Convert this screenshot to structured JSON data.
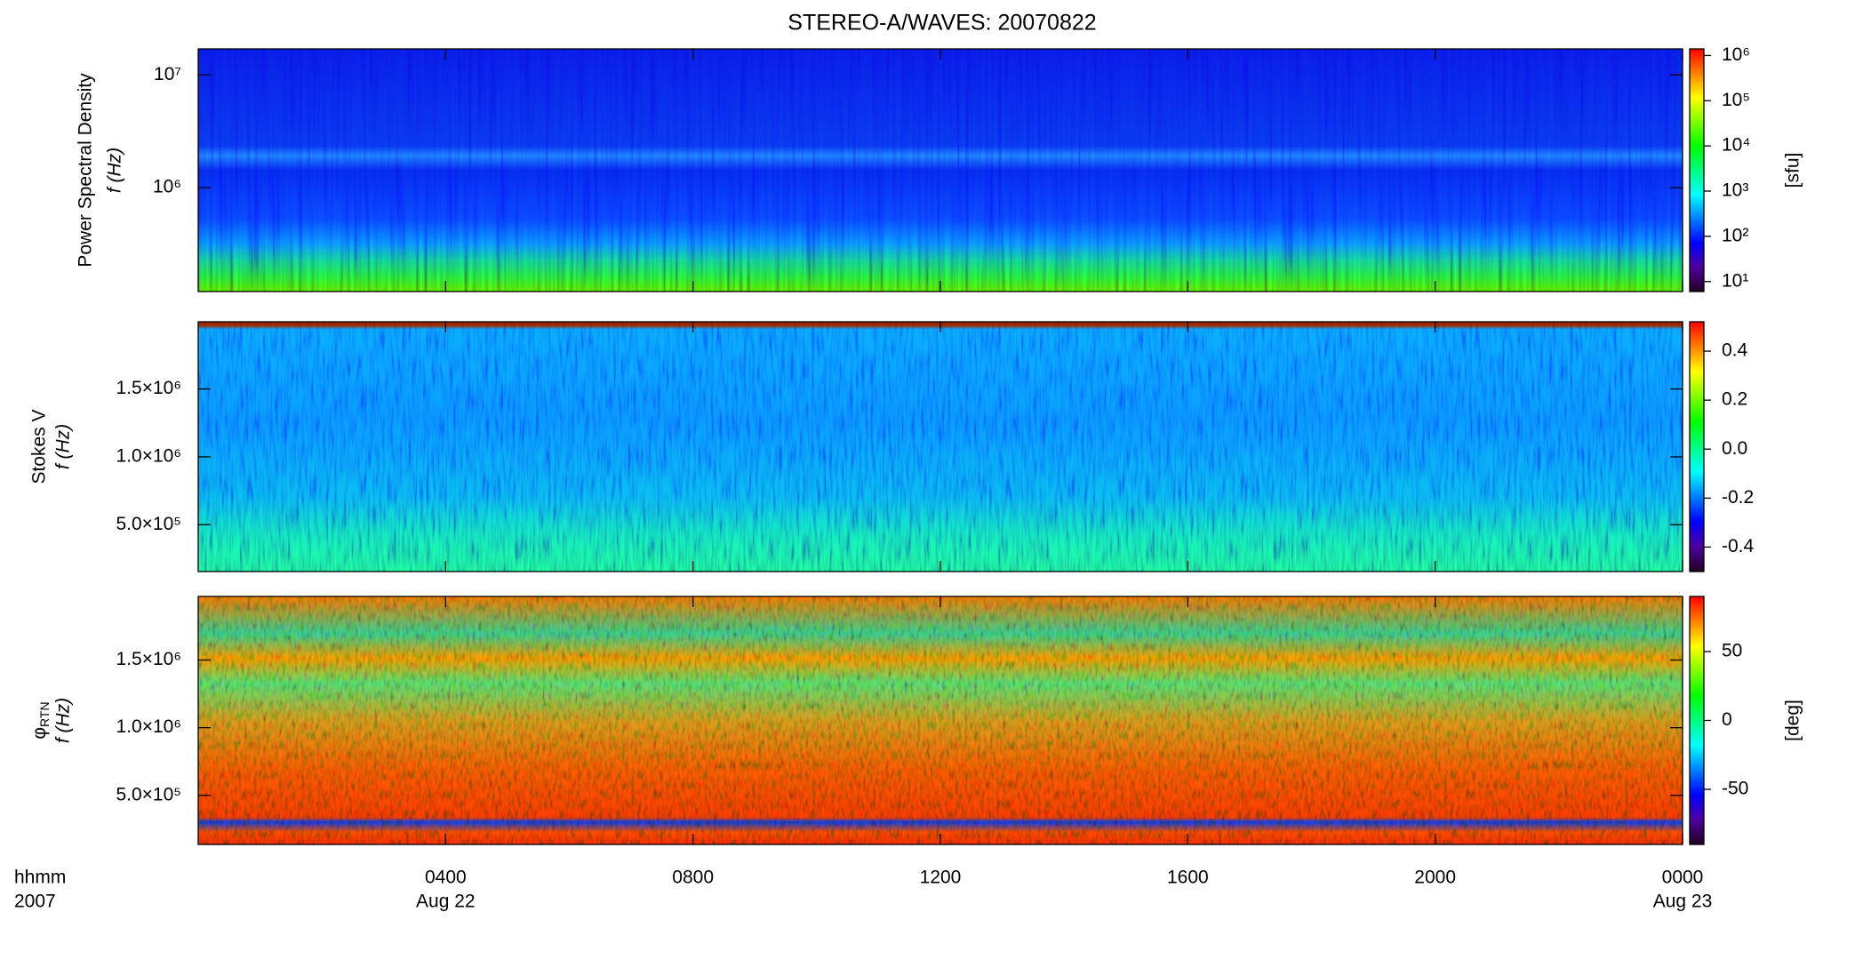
{
  "chart_data": [
    {
      "type": "heatmap",
      "title": "STEREO-A/WAVES: 20070822",
      "ylabel": "Power Spectral Density",
      "ylabel2": "f (Hz)",
      "ylog": true,
      "ylim": [
        120000,
        17000000
      ],
      "yticks": [
        {
          "value": 1000000,
          "label": "10⁶"
        },
        {
          "value": 10000000,
          "label": "10⁷"
        }
      ],
      "xlim": [
        0,
        24
      ],
      "xticks": [
        4,
        8,
        12,
        16,
        20,
        24
      ],
      "clog": true,
      "clim": [
        6,
        1400000
      ],
      "cticks": [
        {
          "value": 10,
          "label": "10¹"
        },
        {
          "value": 100,
          "label": "10²"
        },
        {
          "value": 1000,
          "label": "10³"
        },
        {
          "value": 10000,
          "label": "10⁴"
        },
        {
          "value": 100000,
          "label": "10⁵"
        },
        {
          "value": 1000000,
          "label": "10⁶"
        }
      ],
      "clabel": "[sfu]",
      "colormap": [
        "#200020",
        "#5000a0",
        "#0000ff",
        "#0080ff",
        "#00ffff",
        "#00ff80",
        "#00ff00",
        "#80ff00",
        "#ffff00",
        "#ff8000",
        "#ff0000"
      ]
    },
    {
      "type": "heatmap",
      "ylabel": "Stokes V",
      "ylabel2": "f (Hz)",
      "ylog": false,
      "ylim": [
        155000,
        1995000
      ],
      "yticks": [
        {
          "value": 500000,
          "label": "5.0×10⁵"
        },
        {
          "value": 1000000,
          "label": "1.0×10⁶"
        },
        {
          "value": 1500000,
          "label": "1.5×10⁶"
        }
      ],
      "xlim": [
        0,
        24
      ],
      "xticks": [
        4,
        8,
        12,
        16,
        20,
        24
      ],
      "clog": false,
      "clim": [
        -0.5,
        0.52
      ],
      "cticks": [
        -0.4,
        -0.2,
        {
          "value": 0,
          "label": "0.0"
        },
        0.2,
        0.4
      ],
      "colormap": [
        "#200020",
        "#5000a0",
        "#0000ff",
        "#0080ff",
        "#00ffff",
        "#00ff80",
        "#00ff00",
        "#80ff00",
        "#ffff00",
        "#ff8000",
        "#ff0000"
      ]
    },
    {
      "type": "heatmap",
      "ylabel": "φ",
      "ylabel_sub": "RTN",
      "ylabel2": "f (Hz)",
      "ylog": false,
      "ylim": [
        137000,
        1970000
      ],
      "yticks": [
        {
          "value": 500000,
          "label": "5.0×10⁵"
        },
        {
          "value": 1000000,
          "label": "1.0×10⁶"
        },
        {
          "value": 1500000,
          "label": "1.5×10⁶"
        }
      ],
      "xlim": [
        0,
        24
      ],
      "xticks": [
        {
          "value": 4,
          "label": "0400"
        },
        {
          "value": 8,
          "label": "0800"
        },
        {
          "value": 12,
          "label": "1200"
        },
        {
          "value": 16,
          "label": "1600"
        },
        {
          "value": 20,
          "label": "2000"
        },
        {
          "value": 24,
          "label": "0000"
        }
      ],
      "xdates": [
        {
          "value": 4,
          "label": "Aug 22"
        },
        {
          "value": 24,
          "label": "Aug 23"
        }
      ],
      "xlabel": "hhmm",
      "year": "2007",
      "clog": false,
      "clim": [
        -90,
        90
      ],
      "cticks": [
        -50,
        0,
        50
      ],
      "clabel": "[deg]",
      "colormap": [
        "#200020",
        "#5000a0",
        "#0000ff",
        "#0080ff",
        "#00ffff",
        "#00ff80",
        "#00ff00",
        "#80ff00",
        "#ffff00",
        "#ff8000",
        "#ff0000"
      ]
    }
  ]
}
